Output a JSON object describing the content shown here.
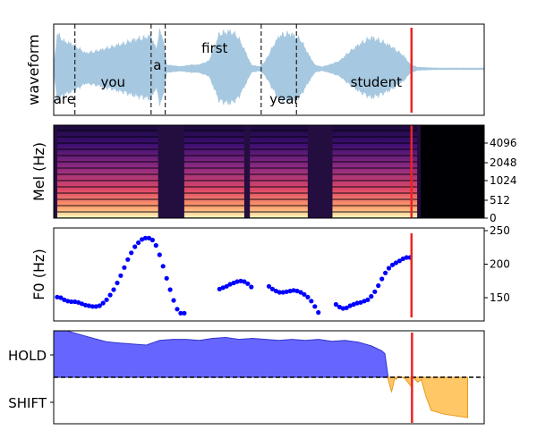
{
  "chart_data": [
    {
      "panel": "waveform",
      "type": "area",
      "ylabel": "waveform",
      "words": [
        {
          "text": "are",
          "t": 0.15,
          "row": "low"
        },
        {
          "text": "you",
          "t": 0.84,
          "row": "mid"
        },
        {
          "text": "a",
          "t": 1.47,
          "row": "high"
        },
        {
          "text": "first",
          "t": 2.28,
          "row": "top"
        },
        {
          "text": "year",
          "t": 3.27,
          "row": "low"
        },
        {
          "text": "student",
          "t": 4.57,
          "row": "mid"
        }
      ],
      "boundaries": [
        0.3,
        1.38,
        1.58,
        2.94,
        3.44
      ],
      "envelope": {
        "t": [
          0.0,
          0.05,
          0.15,
          0.3,
          0.45,
          0.6,
          0.8,
          1.0,
          1.15,
          1.3,
          1.38,
          1.45,
          1.5,
          1.55,
          1.6,
          1.7,
          1.8,
          1.95,
          2.05,
          2.2,
          2.35,
          2.5,
          2.6,
          2.7,
          2.8,
          2.9,
          2.94,
          3.0,
          3.1,
          3.2,
          3.35,
          3.5,
          3.6,
          3.7,
          3.8,
          3.9,
          4.05,
          4.2,
          4.35,
          4.5,
          4.65,
          4.8,
          4.95,
          5.05,
          5.15,
          5.3,
          5.45,
          5.6,
          5.7
        ],
        "amp": [
          0.05,
          0.9,
          0.7,
          0.6,
          0.4,
          0.45,
          0.55,
          0.65,
          0.75,
          0.8,
          0.85,
          0.5,
          0.95,
          0.8,
          0.1,
          0.08,
          0.06,
          0.1,
          0.1,
          0.2,
          0.9,
          0.95,
          0.85,
          0.5,
          0.1,
          0.06,
          0.08,
          0.2,
          0.55,
          0.85,
          0.9,
          0.75,
          0.4,
          0.1,
          0.05,
          0.1,
          0.2,
          0.45,
          0.65,
          0.8,
          0.7,
          0.55,
          0.35,
          0.12,
          0.04,
          0.03,
          0.02,
          0.02,
          0.02
        ]
      },
      "color": "#a6c8e0",
      "xlim": [
        0,
        6.1
      ]
    },
    {
      "panel": "spectrogram",
      "type": "heatmap",
      "ylabel": "Mel (Hz)",
      "yticks": [
        "0",
        "512",
        "1024",
        "2048",
        "4096"
      ],
      "voiced_segments": [
        [
          0.05,
          1.48
        ],
        [
          1.85,
          2.7
        ],
        [
          2.78,
          3.6
        ],
        [
          3.95,
          5.15
        ]
      ],
      "xlim": [
        0,
        6.1
      ]
    },
    {
      "panel": "f0",
      "type": "scatter",
      "ylabel": "F0 (Hz)",
      "yticks": [
        150,
        200,
        250
      ],
      "ylim": [
        120,
        250
      ],
      "color": "#0000ff",
      "points": [
        [
          0.05,
          151
        ],
        [
          0.1,
          150
        ],
        [
          0.15,
          147
        ],
        [
          0.2,
          145
        ],
        [
          0.25,
          144
        ],
        [
          0.3,
          144
        ],
        [
          0.35,
          143
        ],
        [
          0.4,
          141
        ],
        [
          0.45,
          139
        ],
        [
          0.5,
          138
        ],
        [
          0.55,
          137
        ],
        [
          0.6,
          137
        ],
        [
          0.65,
          138
        ],
        [
          0.7,
          142
        ],
        [
          0.75,
          147
        ],
        [
          0.8,
          154
        ],
        [
          0.85,
          162
        ],
        [
          0.9,
          172
        ],
        [
          0.95,
          183
        ],
        [
          1.0,
          195
        ],
        [
          1.05,
          207
        ],
        [
          1.1,
          217
        ],
        [
          1.15,
          226
        ],
        [
          1.2,
          232
        ],
        [
          1.25,
          237
        ],
        [
          1.3,
          239
        ],
        [
          1.35,
          239
        ],
        [
          1.4,
          236
        ],
        [
          1.45,
          228
        ],
        [
          1.5,
          214
        ],
        [
          1.55,
          197
        ],
        [
          1.6,
          179
        ],
        [
          1.65,
          162
        ],
        [
          1.7,
          146
        ],
        [
          1.75,
          133
        ],
        [
          1.8,
          127
        ],
        [
          1.85,
          127
        ],
        [
          2.35,
          163
        ],
        [
          2.4,
          165
        ],
        [
          2.45,
          167
        ],
        [
          2.5,
          170
        ],
        [
          2.55,
          172
        ],
        [
          2.6,
          174
        ],
        [
          2.65,
          175
        ],
        [
          2.7,
          174
        ],
        [
          2.75,
          171
        ],
        [
          2.8,
          166
        ],
        [
          3.05,
          167
        ],
        [
          3.1,
          163
        ],
        [
          3.15,
          160
        ],
        [
          3.2,
          158
        ],
        [
          3.25,
          158
        ],
        [
          3.3,
          159
        ],
        [
          3.35,
          160
        ],
        [
          3.4,
          161
        ],
        [
          3.45,
          160
        ],
        [
          3.5,
          158
        ],
        [
          3.55,
          155
        ],
        [
          3.6,
          151
        ],
        [
          3.65,
          145
        ],
        [
          3.7,
          137
        ],
        [
          3.75,
          128
        ],
        [
          4.0,
          140
        ],
        [
          4.05,
          136
        ],
        [
          4.1,
          134
        ],
        [
          4.15,
          135
        ],
        [
          4.2,
          138
        ],
        [
          4.25,
          140
        ],
        [
          4.3,
          142
        ],
        [
          4.35,
          143
        ],
        [
          4.4,
          145
        ],
        [
          4.45,
          147
        ],
        [
          4.5,
          152
        ],
        [
          4.55,
          159
        ],
        [
          4.6,
          168
        ],
        [
          4.65,
          178
        ],
        [
          4.7,
          187
        ],
        [
          4.75,
          194
        ],
        [
          4.8,
          199
        ],
        [
          4.85,
          202
        ],
        [
          4.9,
          205
        ],
        [
          4.95,
          208
        ],
        [
          5.0,
          210
        ],
        [
          5.05,
          210
        ]
      ],
      "xlim": [
        0,
        6.1
      ]
    },
    {
      "panel": "vad",
      "type": "area",
      "yticks": [
        "HOLD",
        "SHIFT"
      ],
      "ylim": [
        -1.0,
        1.0
      ],
      "hold_color": "#6666ff",
      "shift_color": "#ffc766",
      "series": [
        {
          "t": [
            0.0,
            0.2,
            0.4,
            0.6,
            0.8,
            1.0,
            1.2,
            1.4,
            1.6,
            1.8,
            2.0,
            2.2,
            2.4,
            2.6,
            2.8,
            3.0,
            3.2,
            3.4,
            3.6,
            3.8,
            4.0,
            4.2,
            4.4,
            4.6,
            4.8,
            4.95,
            5.0,
            5.05
          ],
          "values": [
            0.98,
            0.98,
            0.9,
            0.82,
            0.75,
            0.72,
            0.7,
            0.68,
            0.78,
            0.8,
            0.8,
            0.78,
            0.82,
            0.84,
            0.8,
            0.82,
            0.8,
            0.78,
            0.8,
            0.78,
            0.8,
            0.76,
            0.78,
            0.74,
            0.66,
            0.56,
            0.5,
            0.0
          ]
        },
        {
          "t": [
            5.05,
            5.1,
            5.12,
            5.15,
            5.17,
            5.2,
            5.3,
            5.4,
            5.42,
            5.5,
            5.55,
            5.62,
            5.7,
            5.9,
            6.1,
            6.2,
            6.25
          ],
          "values": [
            -0.05,
            -0.3,
            -0.2,
            0.0,
            -0.05,
            0.02,
            -0.02,
            -0.2,
            0.0,
            -0.1,
            -0.05,
            -0.4,
            -0.7,
            -0.78,
            -0.82,
            -0.84,
            -0.85
          ]
        }
      ],
      "xlim": [
        0,
        6.5
      ]
    }
  ],
  "cursor": {
    "t": 5.07,
    "color": "#ee2222"
  }
}
